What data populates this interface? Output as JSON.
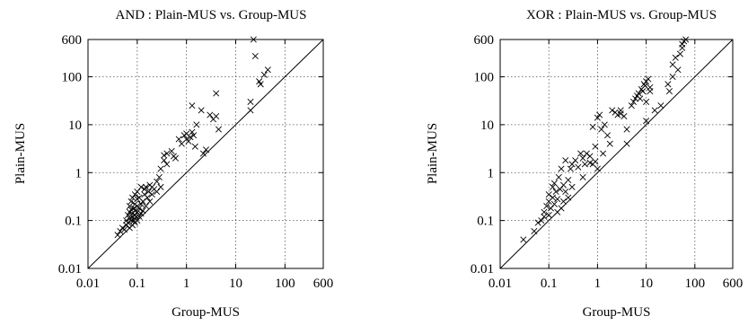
{
  "chart_data": [
    {
      "type": "scatter",
      "title": "AND : Plain-MUS vs. Group-MUS",
      "xlabel": "Group-MUS",
      "ylabel": "Plain-MUS",
      "xscale": "log",
      "yscale": "log",
      "xlim": [
        0.01,
        600
      ],
      "ylim": [
        0.01,
        600
      ],
      "xticks": [
        "0.01",
        "0.1",
        "1",
        "10",
        "100",
        "600"
      ],
      "yticks": [
        "0.01",
        "0.1",
        "1",
        "10",
        "100",
        "600"
      ],
      "grid": true,
      "diagonal": "y = x",
      "marker": "x",
      "points": [
        [
          0.04,
          0.05
        ],
        [
          0.045,
          0.06
        ],
        [
          0.05,
          0.07
        ],
        [
          0.055,
          0.065
        ],
        [
          0.06,
          0.08
        ],
        [
          0.06,
          0.1
        ],
        [
          0.065,
          0.09
        ],
        [
          0.065,
          0.13
        ],
        [
          0.07,
          0.07
        ],
        [
          0.07,
          0.11
        ],
        [
          0.07,
          0.15
        ],
        [
          0.07,
          0.2
        ],
        [
          0.075,
          0.1
        ],
        [
          0.075,
          0.17
        ],
        [
          0.075,
          0.25
        ],
        [
          0.08,
          0.08
        ],
        [
          0.08,
          0.12
        ],
        [
          0.08,
          0.14
        ],
        [
          0.08,
          0.3
        ],
        [
          0.085,
          0.1
        ],
        [
          0.085,
          0.18
        ],
        [
          0.09,
          0.09
        ],
        [
          0.09,
          0.13
        ],
        [
          0.09,
          0.16
        ],
        [
          0.09,
          0.22
        ],
        [
          0.09,
          0.35
        ],
        [
          0.095,
          0.12
        ],
        [
          0.1,
          0.1
        ],
        [
          0.1,
          0.15
        ],
        [
          0.1,
          0.2
        ],
        [
          0.1,
          0.28
        ],
        [
          0.1,
          0.4
        ],
        [
          0.11,
          0.12
        ],
        [
          0.11,
          0.18
        ],
        [
          0.11,
          0.3
        ],
        [
          0.12,
          0.14
        ],
        [
          0.12,
          0.22
        ],
        [
          0.12,
          0.5
        ],
        [
          0.13,
          0.16
        ],
        [
          0.13,
          0.25
        ],
        [
          0.14,
          0.35
        ],
        [
          0.14,
          0.45
        ],
        [
          0.15,
          0.2
        ],
        [
          0.15,
          0.5
        ],
        [
          0.16,
          0.3
        ],
        [
          0.17,
          0.4
        ],
        [
          0.18,
          0.25
        ],
        [
          0.18,
          0.55
        ],
        [
          0.2,
          0.35
        ],
        [
          0.2,
          0.5
        ],
        [
          0.22,
          0.45
        ],
        [
          0.25,
          0.4
        ],
        [
          0.25,
          0.65
        ],
        [
          0.28,
          0.8
        ],
        [
          0.3,
          0.5
        ],
        [
          0.3,
          1.2
        ],
        [
          0.35,
          1.8
        ],
        [
          0.35,
          2.3
        ],
        [
          0.4,
          1.5
        ],
        [
          0.4,
          2.5
        ],
        [
          0.5,
          2.8
        ],
        [
          0.55,
          2.2
        ],
        [
          0.6,
          2
        ],
        [
          0.7,
          5
        ],
        [
          0.8,
          4
        ],
        [
          0.9,
          6
        ],
        [
          1.0,
          5
        ],
        [
          1.0,
          6.5
        ],
        [
          1.1,
          4.5
        ],
        [
          1.2,
          5.5
        ],
        [
          1.3,
          7
        ],
        [
          1.4,
          6
        ],
        [
          1.5,
          3.5
        ],
        [
          1.6,
          10
        ],
        [
          1.3,
          25
        ],
        [
          2,
          20
        ],
        [
          2.2,
          2.5
        ],
        [
          2.5,
          3
        ],
        [
          3,
          16
        ],
        [
          3.5,
          13
        ],
        [
          4,
          15
        ],
        [
          4.5,
          8
        ],
        [
          4,
          45
        ],
        [
          20,
          20
        ],
        [
          20,
          30
        ],
        [
          23,
          600
        ],
        [
          25,
          270
        ],
        [
          30,
          80
        ],
        [
          32,
          70
        ],
        [
          38,
          110
        ],
        [
          45,
          140
        ]
      ]
    },
    {
      "type": "scatter",
      "title": "XOR : Plain-MUS vs. Group-MUS",
      "xlabel": "Group-MUS",
      "ylabel": "Plain-MUS",
      "xscale": "log",
      "yscale": "log",
      "xlim": [
        0.01,
        600
      ],
      "ylim": [
        0.01,
        600
      ],
      "xticks": [
        "0.01",
        "0.1",
        "1",
        "10",
        "100",
        "600"
      ],
      "yticks": [
        "0.01",
        "0.1",
        "1",
        "10",
        "100",
        "600"
      ],
      "grid": true,
      "diagonal": "y = x",
      "marker": "x",
      "points": [
        [
          0.03,
          0.04
        ],
        [
          0.05,
          0.06
        ],
        [
          0.06,
          0.09
        ],
        [
          0.07,
          0.1
        ],
        [
          0.08,
          0.12
        ],
        [
          0.08,
          0.15
        ],
        [
          0.09,
          0.2
        ],
        [
          0.1,
          0.13
        ],
        [
          0.1,
          0.25
        ],
        [
          0.1,
          0.35
        ],
        [
          0.11,
          0.18
        ],
        [
          0.12,
          0.3
        ],
        [
          0.12,
          0.5
        ],
        [
          0.13,
          0.22
        ],
        [
          0.13,
          0.6
        ],
        [
          0.14,
          0.4
        ],
        [
          0.15,
          0.15
        ],
        [
          0.15,
          0.28
        ],
        [
          0.16,
          0.8
        ],
        [
          0.17,
          0.45
        ],
        [
          0.18,
          0.18
        ],
        [
          0.18,
          1.2
        ],
        [
          0.2,
          0.25
        ],
        [
          0.2,
          0.55
        ],
        [
          0.22,
          1.8
        ],
        [
          0.22,
          0.4
        ],
        [
          0.25,
          0.3
        ],
        [
          0.25,
          0.7
        ],
        [
          0.28,
          1.2
        ],
        [
          0.3,
          0.5
        ],
        [
          0.3,
          1.5
        ],
        [
          0.35,
          1.8
        ],
        [
          0.4,
          1.3
        ],
        [
          0.45,
          2.5
        ],
        [
          0.5,
          0.8
        ],
        [
          0.5,
          2
        ],
        [
          0.55,
          1.5
        ],
        [
          0.6,
          2.5
        ],
        [
          0.7,
          1.6
        ],
        [
          0.7,
          2.2
        ],
        [
          0.8,
          1.5
        ],
        [
          0.8,
          9
        ],
        [
          0.9,
          3.5
        ],
        [
          0.9,
          1.7
        ],
        [
          1.0,
          14
        ],
        [
          1.0,
          1.2
        ],
        [
          1.1,
          16
        ],
        [
          1.2,
          8
        ],
        [
          1.3,
          2.5
        ],
        [
          1.4,
          10
        ],
        [
          1.6,
          6
        ],
        [
          1.8,
          4
        ],
        [
          2,
          20
        ],
        [
          2.3,
          18
        ],
        [
          2.6,
          16
        ],
        [
          3,
          17
        ],
        [
          3,
          20
        ],
        [
          3.5,
          15
        ],
        [
          4,
          8
        ],
        [
          4,
          4
        ],
        [
          5,
          25
        ],
        [
          5.5,
          30
        ],
        [
          6,
          35
        ],
        [
          6.5,
          40
        ],
        [
          7,
          45
        ],
        [
          7.5,
          35
        ],
        [
          8,
          55
        ],
        [
          8.5,
          50
        ],
        [
          9,
          70
        ],
        [
          9.5,
          65
        ],
        [
          10,
          30
        ],
        [
          10,
          12
        ],
        [
          10,
          80
        ],
        [
          11,
          90
        ],
        [
          12,
          60
        ],
        [
          12,
          50
        ],
        [
          15,
          20
        ],
        [
          20,
          25
        ],
        [
          28,
          70
        ],
        [
          30,
          50
        ],
        [
          35,
          100
        ],
        [
          35,
          180
        ],
        [
          40,
          250
        ],
        [
          45,
          140
        ],
        [
          50,
          300
        ],
        [
          55,
          400
        ],
        [
          60,
          550
        ],
        [
          65,
          600
        ],
        [
          55,
          480
        ]
      ]
    }
  ]
}
